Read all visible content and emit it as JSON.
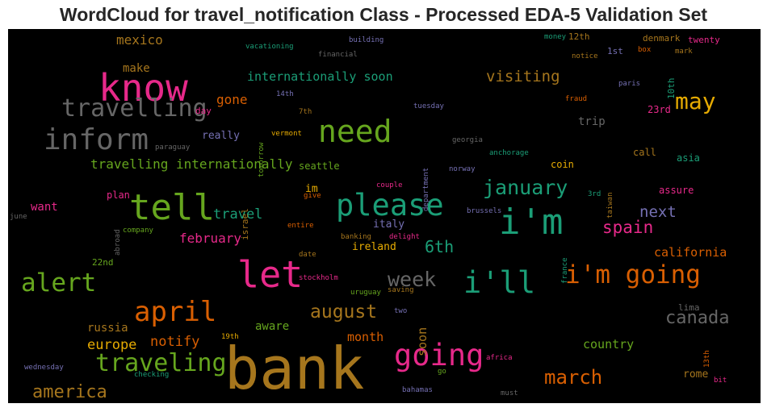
{
  "chart_data": {
    "type": "wordcloud",
    "title": "WordCloud for travel_notification Class - Processed EDA-5 Validation Set",
    "background": "#000000",
    "words": [
      {
        "text": "bank",
        "weight": 1.0,
        "color": "#a6761d"
      },
      {
        "text": "know",
        "weight": 0.8,
        "color": "#e7298a"
      },
      {
        "text": "let",
        "weight": 0.8,
        "color": "#e7298a"
      },
      {
        "text": "please",
        "weight": 0.75,
        "color": "#1b9e77"
      },
      {
        "text": "tell",
        "weight": 0.75,
        "color": "#66a61e"
      },
      {
        "text": "i'm",
        "weight": 0.75,
        "color": "#1b9e77"
      },
      {
        "text": "inform",
        "weight": 0.7,
        "color": "#666666"
      },
      {
        "text": "need",
        "weight": 0.7,
        "color": "#66a61e"
      },
      {
        "text": "travelling",
        "weight": 0.6,
        "color": "#666666"
      },
      {
        "text": "alert",
        "weight": 0.6,
        "color": "#66a61e"
      },
      {
        "text": "i'll",
        "weight": 0.6,
        "color": "#1b9e77"
      },
      {
        "text": "i'm going",
        "weight": 0.55,
        "color": "#d95f02"
      },
      {
        "text": "going",
        "weight": 0.6,
        "color": "#e7298a"
      },
      {
        "text": "april",
        "weight": 0.55,
        "color": "#d95f02"
      },
      {
        "text": "may",
        "weight": 0.5,
        "color": "#e6ab02"
      },
      {
        "text": "traveling",
        "weight": 0.5,
        "color": "#66a61e"
      },
      {
        "text": "week",
        "weight": 0.45,
        "color": "#666666"
      },
      {
        "text": "january",
        "weight": 0.45,
        "color": "#1b9e77"
      },
      {
        "text": "march",
        "weight": 0.4,
        "color": "#d95f02"
      },
      {
        "text": "america",
        "weight": 0.38,
        "color": "#a6761d"
      },
      {
        "text": "august",
        "weight": 0.38,
        "color": "#a6761d"
      },
      {
        "text": "spain",
        "weight": 0.35,
        "color": "#e7298a"
      },
      {
        "text": "canada",
        "weight": 0.33,
        "color": "#666666"
      },
      {
        "text": "visiting",
        "weight": 0.3,
        "color": "#a6761d"
      },
      {
        "text": "6th",
        "weight": 0.3,
        "color": "#1b9e77"
      },
      {
        "text": "next",
        "weight": 0.3,
        "color": "#7570b3"
      },
      {
        "text": "travelling internationally",
        "weight": 0.28,
        "color": "#66a61e"
      },
      {
        "text": "travel",
        "weight": 0.28,
        "color": "#1b9e77"
      },
      {
        "text": "february",
        "weight": 0.27,
        "color": "#e7298a"
      },
      {
        "text": "notify",
        "weight": 0.27,
        "color": "#d95f02"
      },
      {
        "text": "europe",
        "weight": 0.27,
        "color": "#e6ab02"
      },
      {
        "text": "soon",
        "weight": 0.25,
        "color": "#a6761d"
      },
      {
        "text": "internationally soon",
        "weight": 0.25,
        "color": "#1b9e77"
      },
      {
        "text": "mexico",
        "weight": 0.25,
        "color": "#a6761d"
      },
      {
        "text": "gone",
        "weight": 0.25,
        "color": "#d95f02"
      },
      {
        "text": "california",
        "weight": 0.25,
        "color": "#d95f02"
      },
      {
        "text": "country",
        "weight": 0.25,
        "color": "#66a61e"
      },
      {
        "text": "month",
        "weight": 0.25,
        "color": "#d95f02"
      },
      {
        "text": "russia",
        "weight": 0.24,
        "color": "#a6761d"
      },
      {
        "text": "aware",
        "weight": 0.24,
        "color": "#66a61e"
      },
      {
        "text": "make",
        "weight": 0.23,
        "color": "#a6761d"
      },
      {
        "text": "trip",
        "weight": 0.23,
        "color": "#666666"
      },
      {
        "text": "want",
        "weight": 0.22,
        "color": "#e7298a"
      },
      {
        "text": "really",
        "weight": 0.22,
        "color": "#7570b3"
      },
      {
        "text": "im",
        "weight": 0.2,
        "color": "#e6ab02"
      },
      {
        "text": "rome",
        "weight": 0.2,
        "color": "#a6761d"
      },
      {
        "text": "ireland",
        "weight": 0.2,
        "color": "#e6ab02"
      },
      {
        "text": "italy",
        "weight": 0.2,
        "color": "#7570b3"
      },
      {
        "text": "call",
        "weight": 0.2,
        "color": "#a6761d"
      },
      {
        "text": "coin",
        "weight": 0.2,
        "color": "#e6ab02"
      },
      {
        "text": "asia",
        "weight": 0.2,
        "color": "#1b9e77"
      },
      {
        "text": "assure",
        "weight": 0.2,
        "color": "#e7298a"
      },
      {
        "text": "22nd",
        "weight": 0.18,
        "color": "#66a61e"
      },
      {
        "text": "plan",
        "weight": 0.18,
        "color": "#e7298a"
      },
      {
        "text": "seattle",
        "weight": 0.18,
        "color": "#66a61e"
      },
      {
        "text": "23rd",
        "weight": 0.18,
        "color": "#e7298a"
      },
      {
        "text": "12th",
        "weight": 0.18,
        "color": "#a6761d"
      },
      {
        "text": "denmark",
        "weight": 0.18,
        "color": "#a6761d"
      },
      {
        "text": "twenty",
        "weight": 0.18,
        "color": "#e7298a"
      },
      {
        "text": "10th",
        "weight": 0.18,
        "color": "#1b9e77"
      },
      {
        "text": "lima",
        "weight": 0.18,
        "color": "#666666"
      },
      {
        "text": "1st",
        "weight": 0.18,
        "color": "#7570b3"
      },
      {
        "text": "israel",
        "weight": 0.16,
        "color": "#a6761d"
      },
      {
        "text": "day",
        "weight": 0.15,
        "color": "#e7298a"
      },
      {
        "text": "14th",
        "weight": 0.14,
        "color": "#7570b3"
      },
      {
        "text": "7th",
        "weight": 0.14,
        "color": "#a6761d"
      },
      {
        "text": "tuesday",
        "weight": 0.14,
        "color": "#7570b3"
      },
      {
        "text": "georgia",
        "weight": 0.14,
        "color": "#666666"
      },
      {
        "text": "vermont",
        "weight": 0.14,
        "color": "#e6ab02"
      },
      {
        "text": "paraguay",
        "weight": 0.14,
        "color": "#666666"
      },
      {
        "text": "give",
        "weight": 0.14,
        "color": "#d95f02"
      },
      {
        "text": "couple",
        "weight": 0.14,
        "color": "#e7298a"
      },
      {
        "text": "norway",
        "weight": 0.14,
        "color": "#7570b3"
      },
      {
        "text": "anchorage",
        "weight": 0.14,
        "color": "#1b9e77"
      },
      {
        "text": "brussels",
        "weight": 0.14,
        "color": "#7570b3"
      },
      {
        "text": "3rd",
        "weight": 0.14,
        "color": "#1b9e77"
      },
      {
        "text": "taiwan",
        "weight": 0.14,
        "color": "#a6761d"
      },
      {
        "text": "june",
        "weight": 0.14,
        "color": "#666666"
      },
      {
        "text": "company",
        "weight": 0.14,
        "color": "#66a61e"
      },
      {
        "text": "abroad",
        "weight": 0.14,
        "color": "#666666"
      },
      {
        "text": "entire",
        "weight": 0.14,
        "color": "#d95f02"
      },
      {
        "text": "banking",
        "weight": 0.14,
        "color": "#a6761d"
      },
      {
        "text": "delight",
        "weight": 0.14,
        "color": "#e7298a"
      },
      {
        "text": "date",
        "weight": 0.14,
        "color": "#a6761d"
      },
      {
        "text": "stockholm",
        "weight": 0.14,
        "color": "#e7298a"
      },
      {
        "text": "uruguay",
        "weight": 0.14,
        "color": "#66a61e"
      },
      {
        "text": "saving",
        "weight": 0.14,
        "color": "#a6761d"
      },
      {
        "text": "two",
        "weight": 0.14,
        "color": "#7570b3"
      },
      {
        "text": "19th",
        "weight": 0.14,
        "color": "#e6ab02"
      },
      {
        "text": "wednesday",
        "weight": 0.14,
        "color": "#7570b3"
      },
      {
        "text": "checking",
        "weight": 0.14,
        "color": "#1b9e77"
      },
      {
        "text": "bahamas",
        "weight": 0.14,
        "color": "#7570b3"
      },
      {
        "text": "go",
        "weight": 0.14,
        "color": "#66a61e"
      },
      {
        "text": "africa",
        "weight": 0.14,
        "color": "#e7298a"
      },
      {
        "text": "must",
        "weight": 0.14,
        "color": "#666666"
      },
      {
        "text": "bit",
        "weight": 0.14,
        "color": "#e7298a"
      },
      {
        "text": "13th",
        "weight": 0.14,
        "color": "#d95f02"
      },
      {
        "text": "france",
        "weight": 0.14,
        "color": "#1b9e77"
      },
      {
        "text": "department",
        "weight": 0.14,
        "color": "#7570b3"
      },
      {
        "text": "tomorrow",
        "weight": 0.14,
        "color": "#66a61e"
      },
      {
        "text": "vacationing",
        "weight": 0.14,
        "color": "#1b9e77"
      },
      {
        "text": "building",
        "weight": 0.14,
        "color": "#7570b3"
      },
      {
        "text": "financial",
        "weight": 0.14,
        "color": "#666666"
      },
      {
        "text": "money",
        "weight": 0.14,
        "color": "#1b9e77"
      },
      {
        "text": "notice",
        "weight": 0.14,
        "color": "#a6761d"
      },
      {
        "text": "box",
        "weight": 0.14,
        "color": "#d95f02"
      },
      {
        "text": "mark",
        "weight": 0.14,
        "color": "#a6761d"
      },
      {
        "text": "paris",
        "weight": 0.14,
        "color": "#7570b3"
      },
      {
        "text": "fraud",
        "weight": 0.14,
        "color": "#d95f02"
      }
    ]
  }
}
